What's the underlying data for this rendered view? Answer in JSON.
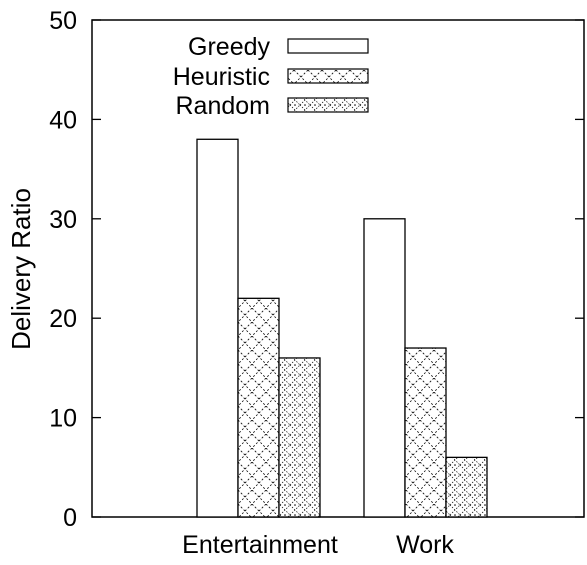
{
  "chart_data": {
    "type": "bar",
    "title": "",
    "xlabel": "",
    "ylabel": "Delivery Ratio",
    "categories": [
      "Entertainment",
      "Work"
    ],
    "series": [
      {
        "name": "Greedy",
        "values": [
          38,
          30
        ],
        "pattern": "empty"
      },
      {
        "name": "Heuristic",
        "values": [
          22,
          17
        ],
        "pattern": "crosshatch"
      },
      {
        "name": "Random",
        "values": [
          16,
          6
        ],
        "pattern": "dots"
      }
    ],
    "ylim": [
      0,
      50
    ],
    "yticks": [
      0,
      10,
      20,
      30,
      40,
      50
    ],
    "grid": false,
    "legend": "top-center",
    "colors": {
      "axis": "#000000",
      "bar_fill": "#ffffff",
      "pattern": "#000000"
    }
  }
}
